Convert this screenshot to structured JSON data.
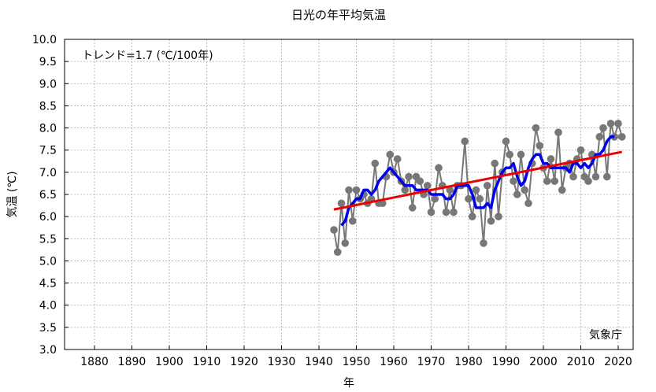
{
  "chart_data": {
    "type": "line",
    "title": "日光の年平均気温",
    "xlabel": "年",
    "ylabel": "気温 (℃)",
    "xlim": [
      1872,
      2024
    ],
    "ylim": [
      3.0,
      10.0
    ],
    "x_ticks": [
      1880,
      1890,
      1900,
      1910,
      1920,
      1930,
      1940,
      1950,
      1960,
      1970,
      1980,
      1990,
      2000,
      2010,
      2020
    ],
    "y_ticks": [
      3.0,
      3.5,
      4.0,
      4.5,
      5.0,
      5.5,
      6.0,
      6.5,
      7.0,
      7.5,
      8.0,
      8.5,
      9.0,
      9.5,
      10.0
    ],
    "grid": true,
    "annotation": "トレンド=1.7 (℃/100年)",
    "source": "気象庁",
    "series": [
      {
        "kind": "annual",
        "color": "#777777",
        "x": [
          1944,
          1945,
          1946,
          1947,
          1948,
          1949,
          1950,
          1951,
          1952,
          1953,
          1954,
          1955,
          1956,
          1957,
          1958,
          1959,
          1960,
          1961,
          1962,
          1963,
          1964,
          1965,
          1966,
          1967,
          1968,
          1969,
          1970,
          1971,
          1972,
          1973,
          1974,
          1975,
          1976,
          1977,
          1978,
          1979,
          1980,
          1981,
          1982,
          1983,
          1984,
          1985,
          1986,
          1987,
          1988,
          1989,
          1990,
          1991,
          1992,
          1993,
          1994,
          1995,
          1996,
          1997,
          1998,
          1999,
          2000,
          2001,
          2002,
          2003,
          2004,
          2005,
          2006,
          2007,
          2008,
          2009,
          2010,
          2011,
          2012,
          2013,
          2014,
          2015,
          2016,
          2017,
          2018,
          2019,
          2020,
          2021
        ],
        "y": [
          5.7,
          5.2,
          6.3,
          5.4,
          6.6,
          5.9,
          6.6,
          6.4,
          6.5,
          6.3,
          6.4,
          7.2,
          6.3,
          6.3,
          6.9,
          7.4,
          7.0,
          7.3,
          6.8,
          6.6,
          6.9,
          6.2,
          6.9,
          6.8,
          6.5,
          6.7,
          6.1,
          6.4,
          7.1,
          6.7,
          6.1,
          6.6,
          6.1,
          6.7,
          6.7,
          7.7,
          6.4,
          6.0,
          6.6,
          6.4,
          5.4,
          6.7,
          5.9,
          7.2,
          6.0,
          7.0,
          7.7,
          7.4,
          6.8,
          6.5,
          7.4,
          6.6,
          6.3,
          7.2,
          8.0,
          7.6,
          7.1,
          6.8,
          7.3,
          6.8,
          7.9,
          6.6,
          7.1,
          7.2,
          6.9,
          7.3,
          7.5,
          6.9,
          6.8,
          7.4,
          6.9,
          7.8,
          8.0,
          6.9,
          8.1,
          7.8,
          8.1,
          7.8
        ]
      },
      {
        "kind": "5-year running mean",
        "color": "#0000ee",
        "x": [
          1946,
          1947,
          1948,
          1949,
          1950,
          1951,
          1952,
          1953,
          1954,
          1955,
          1956,
          1957,
          1958,
          1959,
          1960,
          1961,
          1962,
          1963,
          1964,
          1965,
          1966,
          1967,
          1968,
          1969,
          1970,
          1971,
          1972,
          1973,
          1974,
          1975,
          1976,
          1977,
          1978,
          1979,
          1980,
          1981,
          1982,
          1983,
          1984,
          1985,
          1986,
          1987,
          1988,
          1989,
          1990,
          1991,
          1992,
          1993,
          1994,
          1995,
          1996,
          1997,
          1998,
          1999,
          2000,
          2001,
          2002,
          2003,
          2004,
          2005,
          2006,
          2007,
          2008,
          2009,
          2010,
          2011,
          2012,
          2013,
          2014,
          2015,
          2016,
          2017,
          2018,
          2019
        ],
        "y": [
          5.8,
          5.9,
          6.2,
          6.3,
          6.4,
          6.4,
          6.6,
          6.6,
          6.5,
          6.6,
          6.8,
          6.9,
          7.0,
          7.1,
          7.0,
          6.9,
          6.8,
          6.7,
          6.7,
          6.7,
          6.6,
          6.6,
          6.6,
          6.6,
          6.5,
          6.5,
          6.5,
          6.5,
          6.4,
          6.4,
          6.5,
          6.7,
          6.7,
          6.7,
          6.7,
          6.5,
          6.2,
          6.2,
          6.2,
          6.3,
          6.2,
          6.6,
          6.8,
          7.0,
          7.1,
          7.1,
          7.2,
          6.9,
          6.7,
          6.8,
          7.1,
          7.3,
          7.4,
          7.4,
          7.2,
          7.2,
          7.1,
          7.1,
          7.1,
          7.1,
          7.1,
          7.0,
          7.2,
          7.2,
          7.1,
          7.2,
          7.1,
          7.2,
          7.4,
          7.4,
          7.5,
          7.7,
          7.8,
          7.8
        ]
      },
      {
        "kind": "trend",
        "color": "#ee0000",
        "x": [
          1944,
          2021
        ],
        "y": [
          6.16,
          7.46
        ]
      }
    ]
  }
}
